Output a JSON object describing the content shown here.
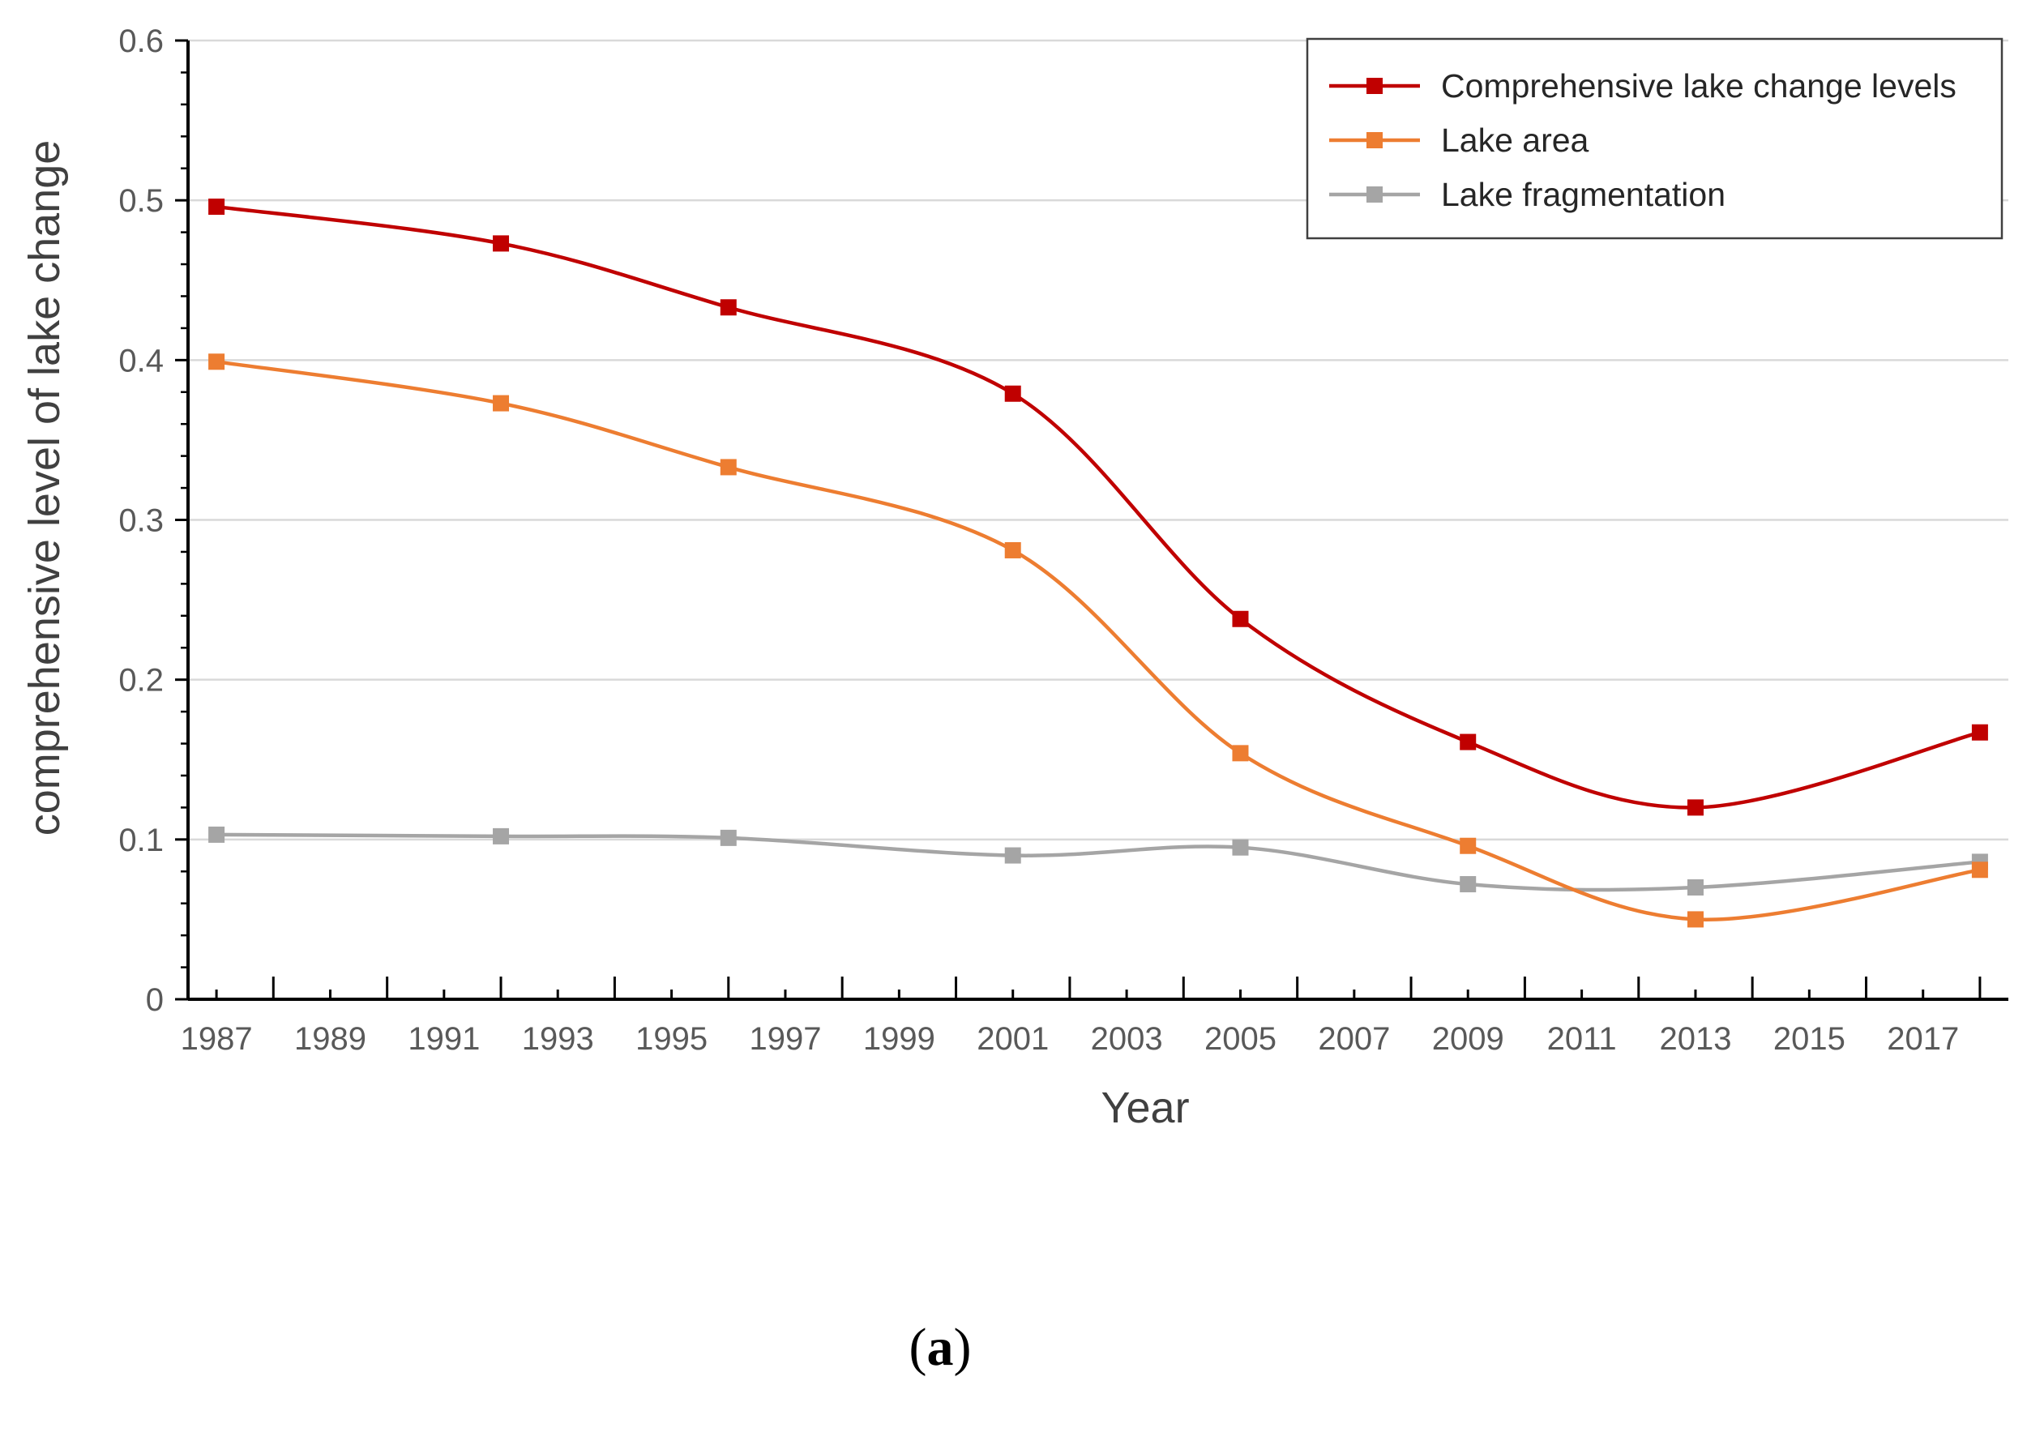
{
  "chart_data": {
    "type": "line",
    "title": "",
    "xlabel": "Year",
    "ylabel": "comprehensive level of lake change",
    "xlim": [
      1986.5,
      2018.5
    ],
    "ylim": [
      0,
      0.6
    ],
    "x_ticks": [
      "1987",
      "1989",
      "1991",
      "1993",
      "1995",
      "1997",
      "1999",
      "2001",
      "2003",
      "2005",
      "2007",
      "2009",
      "2011",
      "2013",
      "2015",
      "2017"
    ],
    "y_ticks": [
      "0",
      "0.1",
      "0.2",
      "0.3",
      "0.4",
      "0.5",
      "0.6"
    ],
    "x": [
      1987,
      1992,
      1996,
      2001,
      2005,
      2009,
      2013,
      2018
    ],
    "grid": "horizontal",
    "legend_position": "top-right",
    "series": [
      {
        "name": "Comprehensive lake change levels",
        "color": "#c00000",
        "values": [
          0.496,
          0.473,
          0.433,
          0.379,
          0.238,
          0.161,
          0.12,
          0.167
        ]
      },
      {
        "name": "Lake area",
        "color": "#ed7d31",
        "values": [
          0.399,
          0.373,
          0.333,
          0.281,
          0.154,
          0.096,
          0.05,
          0.081
        ]
      },
      {
        "name": "Lake fragmentation",
        "color": "#a5a5a5",
        "values": [
          0.103,
          0.102,
          0.101,
          0.09,
          0.095,
          0.072,
          0.07,
          0.086
        ]
      }
    ]
  },
  "caption": {
    "open": "(",
    "letter": "a",
    "close": ")"
  }
}
